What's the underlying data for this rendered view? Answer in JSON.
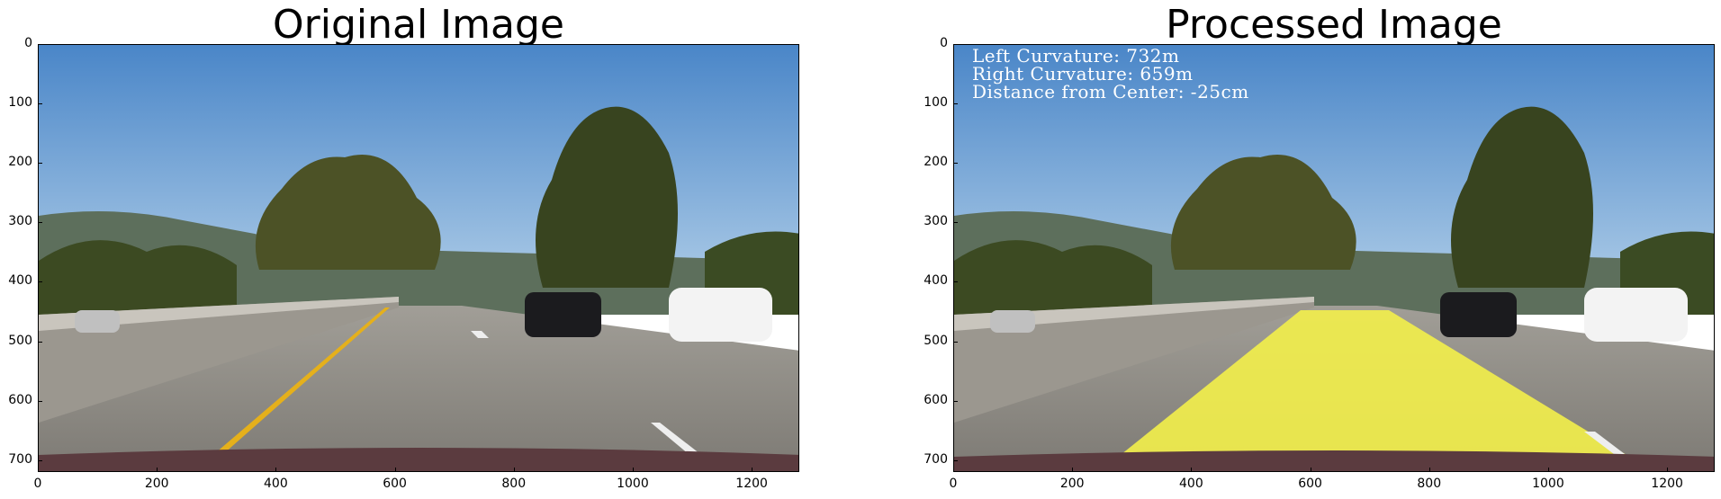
{
  "figure": {
    "panels": [
      {
        "title": "Original Image",
        "x_ticks": [
          "0",
          "200",
          "400",
          "600",
          "800",
          "1000",
          "1200"
        ],
        "y_ticks": [
          "0",
          "100",
          "200",
          "300",
          "400",
          "500",
          "600",
          "700"
        ],
        "x_range": [
          0,
          1280
        ],
        "y_range": [
          720,
          0
        ]
      },
      {
        "title": "Processed Image",
        "x_ticks": [
          "0",
          "200",
          "400",
          "600",
          "800",
          "1000",
          "1200"
        ],
        "y_ticks": [
          "0",
          "100",
          "200",
          "300",
          "400",
          "500",
          "600",
          "700"
        ],
        "x_range": [
          0,
          1280
        ],
        "y_range": [
          720,
          0
        ],
        "overlay_lines": [
          "Left Curvature: 732m",
          "Right Curvature: 659m",
          "Distance from Center: -25cm"
        ],
        "lane_fill_color": "#f3f04a"
      }
    ]
  },
  "colors": {
    "sky_top": "#4f8fd0",
    "sky_bottom": "#a9cbe8",
    "road": "#8f8d87",
    "lane_yellow": "#e7b21a",
    "tree": "#3e4a22",
    "hood": "#5b3b3f"
  }
}
